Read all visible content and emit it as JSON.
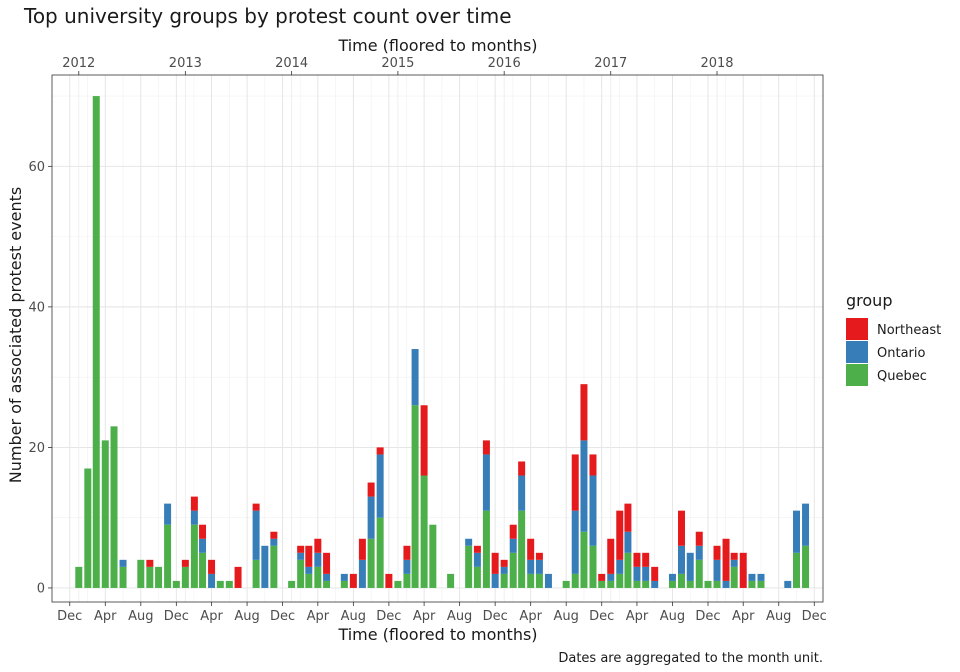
{
  "chart_data": {
    "type": "bar",
    "stacked": true,
    "title": "Top university groups by protest count over time",
    "xlabel": "Time (floored to months)",
    "x2label": "Time (floored to months)",
    "ylabel": "Number of associated protest events",
    "caption": "Dates are aggregated to the month unit.",
    "legend_title": "group",
    "legend_position": "right",
    "grid": true,
    "ylim": [
      -2,
      73
    ],
    "xlim": [
      "2011-10-01",
      "2018-12-31"
    ],
    "y_ticks": [
      0,
      20,
      40,
      60
    ],
    "x_ticks": [
      {
        "date": "2011-12-01",
        "label": "Dec"
      },
      {
        "date": "2012-04-01",
        "label": "Apr"
      },
      {
        "date": "2012-08-01",
        "label": "Aug"
      },
      {
        "date": "2012-12-01",
        "label": "Dec"
      },
      {
        "date": "2013-04-01",
        "label": "Apr"
      },
      {
        "date": "2013-08-01",
        "label": "Aug"
      },
      {
        "date": "2013-12-01",
        "label": "Dec"
      },
      {
        "date": "2014-04-01",
        "label": "Apr"
      },
      {
        "date": "2014-08-01",
        "label": "Aug"
      },
      {
        "date": "2014-12-01",
        "label": "Dec"
      },
      {
        "date": "2015-04-01",
        "label": "Apr"
      },
      {
        "date": "2015-08-01",
        "label": "Aug"
      },
      {
        "date": "2015-12-01",
        "label": "Dec"
      },
      {
        "date": "2016-04-01",
        "label": "Apr"
      },
      {
        "date": "2016-08-01",
        "label": "Aug"
      },
      {
        "date": "2016-12-01",
        "label": "Dec"
      },
      {
        "date": "2017-04-01",
        "label": "Apr"
      },
      {
        "date": "2017-08-01",
        "label": "Aug"
      },
      {
        "date": "2017-12-01",
        "label": "Dec"
      },
      {
        "date": "2018-04-01",
        "label": "Apr"
      },
      {
        "date": "2018-08-01",
        "label": "Aug"
      },
      {
        "date": "2018-12-01",
        "label": "Dec"
      }
    ],
    "x2_ticks": [
      {
        "date": "2012-01-01",
        "label": "2012"
      },
      {
        "date": "2013-01-01",
        "label": "2013"
      },
      {
        "date": "2014-01-01",
        "label": "2014"
      },
      {
        "date": "2015-01-01",
        "label": "2015"
      },
      {
        "date": "2016-01-01",
        "label": "2016"
      },
      {
        "date": "2017-01-01",
        "label": "2017"
      },
      {
        "date": "2018-01-01",
        "label": "2018"
      }
    ],
    "series": [
      {
        "name": "Northeast",
        "color": "#e41a1c"
      },
      {
        "name": "Ontario",
        "color": "#377eb8"
      },
      {
        "name": "Quebec",
        "color": "#4daf4a"
      }
    ],
    "months": [
      {
        "month": "2012-01",
        "Northeast": 0,
        "Ontario": 0,
        "Quebec": 3
      },
      {
        "month": "2012-02",
        "Northeast": 0,
        "Ontario": 0,
        "Quebec": 17
      },
      {
        "month": "2012-03",
        "Northeast": 0,
        "Ontario": 0,
        "Quebec": 70
      },
      {
        "month": "2012-04",
        "Northeast": 0,
        "Ontario": 0,
        "Quebec": 21
      },
      {
        "month": "2012-05",
        "Northeast": 0,
        "Ontario": 0,
        "Quebec": 23
      },
      {
        "month": "2012-06",
        "Northeast": 0,
        "Ontario": 1,
        "Quebec": 3
      },
      {
        "month": "2012-08",
        "Northeast": 0,
        "Ontario": 0,
        "Quebec": 4
      },
      {
        "month": "2012-09",
        "Northeast": 1,
        "Ontario": 0,
        "Quebec": 3
      },
      {
        "month": "2012-10",
        "Northeast": 0,
        "Ontario": 0,
        "Quebec": 3
      },
      {
        "month": "2012-11",
        "Northeast": 0,
        "Ontario": 3,
        "Quebec": 9
      },
      {
        "month": "2012-12",
        "Northeast": 0,
        "Ontario": 0,
        "Quebec": 1
      },
      {
        "month": "2013-01",
        "Northeast": 1,
        "Ontario": 0,
        "Quebec": 3
      },
      {
        "month": "2013-02",
        "Northeast": 2,
        "Ontario": 2,
        "Quebec": 9
      },
      {
        "month": "2013-03",
        "Northeast": 2,
        "Ontario": 2,
        "Quebec": 5
      },
      {
        "month": "2013-04",
        "Northeast": 2,
        "Ontario": 2,
        "Quebec": 0
      },
      {
        "month": "2013-05",
        "Northeast": 0,
        "Ontario": 0,
        "Quebec": 1
      },
      {
        "month": "2013-06",
        "Northeast": 0,
        "Ontario": 0,
        "Quebec": 1
      },
      {
        "month": "2013-07",
        "Northeast": 3,
        "Ontario": 0,
        "Quebec": 0
      },
      {
        "month": "2013-09",
        "Northeast": 1,
        "Ontario": 7,
        "Quebec": 4
      },
      {
        "month": "2013-10",
        "Northeast": 0,
        "Ontario": 6,
        "Quebec": 0
      },
      {
        "month": "2013-11",
        "Northeast": 1,
        "Ontario": 1,
        "Quebec": 6
      },
      {
        "month": "2014-01",
        "Northeast": 0,
        "Ontario": 0,
        "Quebec": 1
      },
      {
        "month": "2014-02",
        "Northeast": 1,
        "Ontario": 1,
        "Quebec": 4
      },
      {
        "month": "2014-03",
        "Northeast": 3,
        "Ontario": 1,
        "Quebec": 2
      },
      {
        "month": "2014-04",
        "Northeast": 2,
        "Ontario": 2,
        "Quebec": 3
      },
      {
        "month": "2014-05",
        "Northeast": 3,
        "Ontario": 1,
        "Quebec": 1
      },
      {
        "month": "2014-07",
        "Northeast": 0,
        "Ontario": 1,
        "Quebec": 1
      },
      {
        "month": "2014-08",
        "Northeast": 2,
        "Ontario": 0,
        "Quebec": 0
      },
      {
        "month": "2014-09",
        "Northeast": 3,
        "Ontario": 4,
        "Quebec": 0
      },
      {
        "month": "2014-10",
        "Northeast": 2,
        "Ontario": 6,
        "Quebec": 7
      },
      {
        "month": "2014-11",
        "Northeast": 1,
        "Ontario": 9,
        "Quebec": 10
      },
      {
        "month": "2014-12",
        "Northeast": 2,
        "Ontario": 0,
        "Quebec": 0
      },
      {
        "month": "2015-01",
        "Northeast": 0,
        "Ontario": 0,
        "Quebec": 1
      },
      {
        "month": "2015-02",
        "Northeast": 2,
        "Ontario": 2,
        "Quebec": 2
      },
      {
        "month": "2015-03",
        "Northeast": 0,
        "Ontario": 8,
        "Quebec": 26
      },
      {
        "month": "2015-04",
        "Northeast": 10,
        "Ontario": 0,
        "Quebec": 16
      },
      {
        "month": "2015-05",
        "Northeast": 0,
        "Ontario": 0,
        "Quebec": 9
      },
      {
        "month": "2015-07",
        "Northeast": 0,
        "Ontario": 0,
        "Quebec": 2
      },
      {
        "month": "2015-09",
        "Northeast": 0,
        "Ontario": 1,
        "Quebec": 6
      },
      {
        "month": "2015-10",
        "Northeast": 1,
        "Ontario": 2,
        "Quebec": 3
      },
      {
        "month": "2015-11",
        "Northeast": 2,
        "Ontario": 8,
        "Quebec": 11
      },
      {
        "month": "2015-12",
        "Northeast": 3,
        "Ontario": 2,
        "Quebec": 0
      },
      {
        "month": "2016-01",
        "Northeast": 1,
        "Ontario": 1,
        "Quebec": 2
      },
      {
        "month": "2016-02",
        "Northeast": 2,
        "Ontario": 2,
        "Quebec": 5
      },
      {
        "month": "2016-03",
        "Northeast": 2,
        "Ontario": 5,
        "Quebec": 11
      },
      {
        "month": "2016-04",
        "Northeast": 3,
        "Ontario": 2,
        "Quebec": 2
      },
      {
        "month": "2016-05",
        "Northeast": 1,
        "Ontario": 2,
        "Quebec": 2
      },
      {
        "month": "2016-06",
        "Northeast": 0,
        "Ontario": 2,
        "Quebec": 0
      },
      {
        "month": "2016-08",
        "Northeast": 0,
        "Ontario": 0,
        "Quebec": 1
      },
      {
        "month": "2016-09",
        "Northeast": 8,
        "Ontario": 9,
        "Quebec": 2
      },
      {
        "month": "2016-10",
        "Northeast": 8,
        "Ontario": 13,
        "Quebec": 8
      },
      {
        "month": "2016-11",
        "Northeast": 3,
        "Ontario": 10,
        "Quebec": 6
      },
      {
        "month": "2016-12",
        "Northeast": 1,
        "Ontario": 0,
        "Quebec": 1
      },
      {
        "month": "2017-01",
        "Northeast": 5,
        "Ontario": 1,
        "Quebec": 1
      },
      {
        "month": "2017-02",
        "Northeast": 7,
        "Ontario": 2,
        "Quebec": 2
      },
      {
        "month": "2017-03",
        "Northeast": 4,
        "Ontario": 3,
        "Quebec": 5
      },
      {
        "month": "2017-04",
        "Northeast": 2,
        "Ontario": 2,
        "Quebec": 1
      },
      {
        "month": "2017-05",
        "Northeast": 2,
        "Ontario": 2,
        "Quebec": 1
      },
      {
        "month": "2017-06",
        "Northeast": 2,
        "Ontario": 1,
        "Quebec": 0
      },
      {
        "month": "2017-08",
        "Northeast": 0,
        "Ontario": 1,
        "Quebec": 1
      },
      {
        "month": "2017-09",
        "Northeast": 5,
        "Ontario": 4,
        "Quebec": 2
      },
      {
        "month": "2017-10",
        "Northeast": 0,
        "Ontario": 4,
        "Quebec": 1
      },
      {
        "month": "2017-11",
        "Northeast": 2,
        "Ontario": 2,
        "Quebec": 4
      },
      {
        "month": "2017-12",
        "Northeast": 0,
        "Ontario": 0,
        "Quebec": 1
      },
      {
        "month": "2018-01",
        "Northeast": 2,
        "Ontario": 3,
        "Quebec": 1
      },
      {
        "month": "2018-02",
        "Northeast": 6,
        "Ontario": 1,
        "Quebec": 0
      },
      {
        "month": "2018-03",
        "Northeast": 1,
        "Ontario": 1,
        "Quebec": 3
      },
      {
        "month": "2018-04",
        "Northeast": 5,
        "Ontario": 0,
        "Quebec": 0
      },
      {
        "month": "2018-05",
        "Northeast": 0,
        "Ontario": 1,
        "Quebec": 1
      },
      {
        "month": "2018-06",
        "Northeast": 0,
        "Ontario": 1,
        "Quebec": 1
      },
      {
        "month": "2018-09",
        "Northeast": 0,
        "Ontario": 1,
        "Quebec": 0
      },
      {
        "month": "2018-10",
        "Northeast": 0,
        "Ontario": 6,
        "Quebec": 5
      },
      {
        "month": "2018-11",
        "Northeast": 0,
        "Ontario": 6,
        "Quebec": 6
      }
    ]
  }
}
